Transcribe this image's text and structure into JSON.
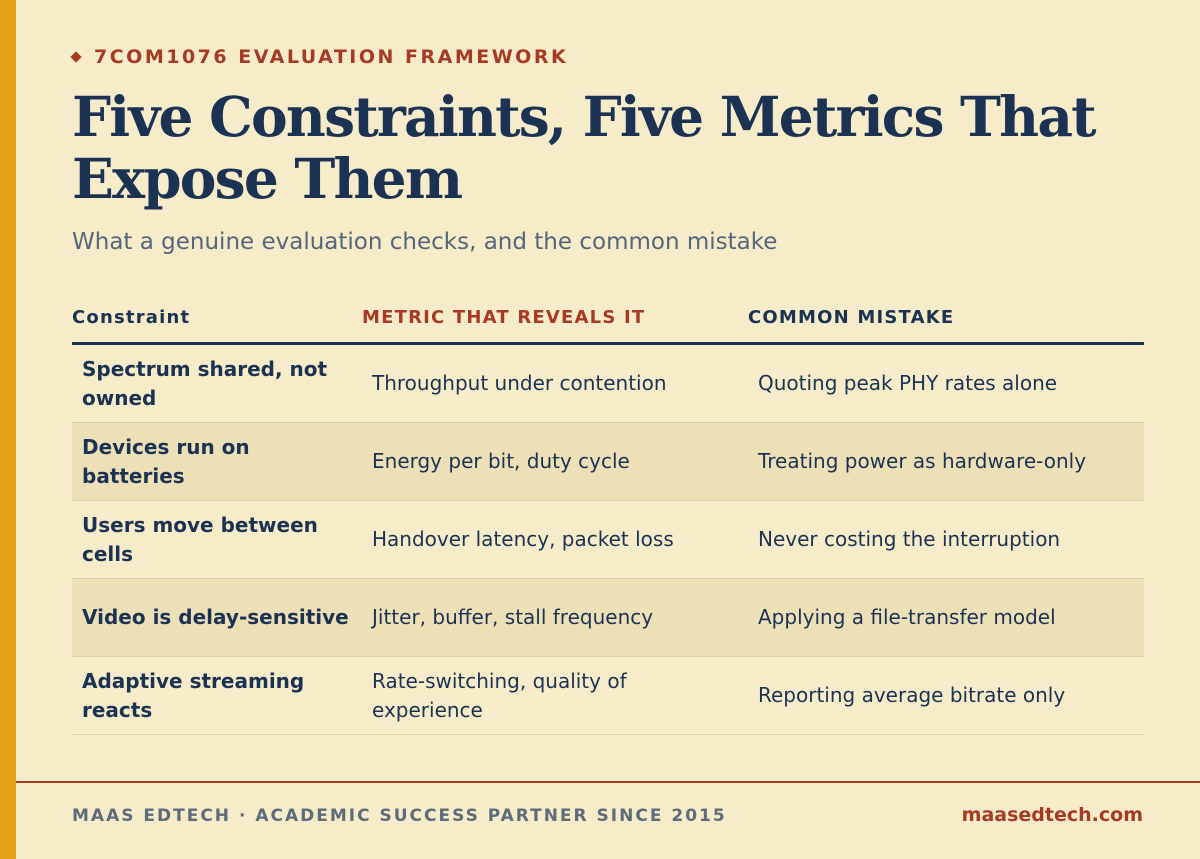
{
  "header": {
    "eyebrow": "7COM1076 EVALUATION FRAMEWORK",
    "title": "Five Constraints, Five Metrics That Expose Them",
    "subtitle": "What a genuine evaluation checks, and the common mistake"
  },
  "table": {
    "headers": [
      "Constraint",
      "METRIC THAT REVEALS IT",
      "COMMON MISTAKE"
    ],
    "rows": [
      [
        "Spectrum shared, not owned",
        "Throughput under contention",
        "Quoting peak PHY rates alone"
      ],
      [
        "Devices run on batteries",
        "Energy per bit, duty cycle",
        "Treating power as hardware-only"
      ],
      [
        "Users move between cells",
        "Handover latency, packet loss",
        "Never costing the interruption"
      ],
      [
        "Video is delay-sensitive",
        "Jitter, buffer, stall frequency",
        "Applying a file-transfer model"
      ],
      [
        "Adaptive streaming reacts",
        "Rate-switching, quality of experience",
        "Reporting average bitrate only"
      ]
    ]
  },
  "footer": {
    "left": "MAAS EDTECH · ACADEMIC SUCCESS PARTNER SINCE 2015",
    "right": "maasedtech.com"
  },
  "colors": {
    "background": "#f6ecca",
    "accent_bar": "#e3a21a",
    "navy": "#1b3253",
    "rust": "#a63a24",
    "row_alt": "#ede0b7"
  }
}
